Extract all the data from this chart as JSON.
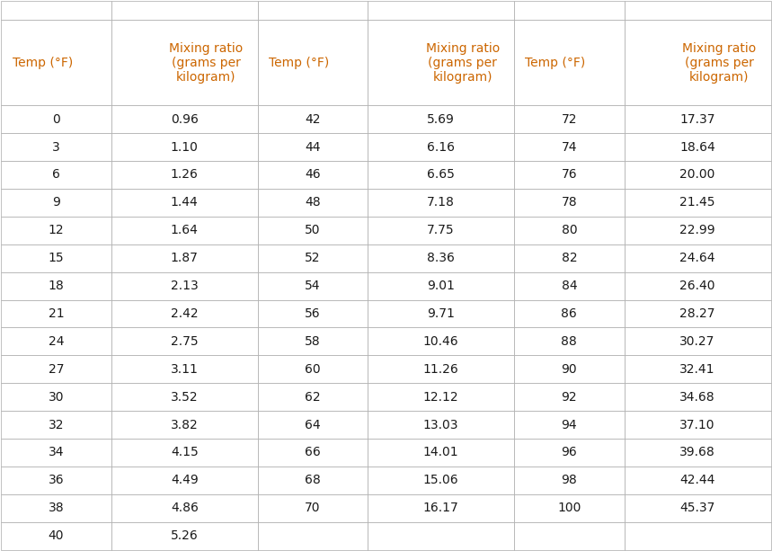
{
  "col_headers": [
    [
      "Temp (°F)",
      "Mixing ratio\n(grams per\nkilogram)",
      "Temp (°F)",
      "Mixing ratio\n(grams per\nkilogram)",
      "Temp (°F)",
      "Mixing ratio\n(grams per\nkilogram)"
    ],
    [
      "",
      "",
      "",
      "",
      "",
      ""
    ]
  ],
  "col1_temp": [
    0,
    3,
    6,
    9,
    12,
    15,
    18,
    21,
    24,
    27,
    30,
    32,
    34,
    36,
    38,
    40
  ],
  "col1_mix": [
    "0.96",
    "1.10",
    "1.26",
    "1.44",
    "1.64",
    "1.87",
    "2.13",
    "2.42",
    "2.75",
    "3.11",
    "3.52",
    "3.82",
    "4.15",
    "4.49",
    "4.86",
    "5.26"
  ],
  "col2_temp": [
    42,
    44,
    46,
    48,
    50,
    52,
    54,
    56,
    58,
    60,
    62,
    64,
    66,
    68,
    70
  ],
  "col2_mix": [
    "5.69",
    "6.16",
    "6.65",
    "7.18",
    "7.75",
    "8.36",
    "9.01",
    "9.71",
    "10.46",
    "11.26",
    "12.12",
    "13.03",
    "14.01",
    "15.06",
    "16.17"
  ],
  "col3_temp": [
    72,
    74,
    76,
    78,
    80,
    82,
    84,
    86,
    88,
    90,
    92,
    94,
    96,
    98,
    100
  ],
  "col3_mix": [
    "17.37",
    "18.64",
    "20.00",
    "21.45",
    "22.99",
    "24.64",
    "26.40",
    "28.27",
    "30.27",
    "32.41",
    "34.68",
    "37.10",
    "39.68",
    "42.44",
    "45.37"
  ],
  "header_color": "#ffffff",
  "row_color": "#ffffff",
  "border_color": "#aaaaaa",
  "text_color": "#1a1a1a",
  "header_text_color": "#cc6600",
  "background_color": "#ffffff",
  "figsize": [
    8.59,
    6.13
  ],
  "dpi": 100
}
